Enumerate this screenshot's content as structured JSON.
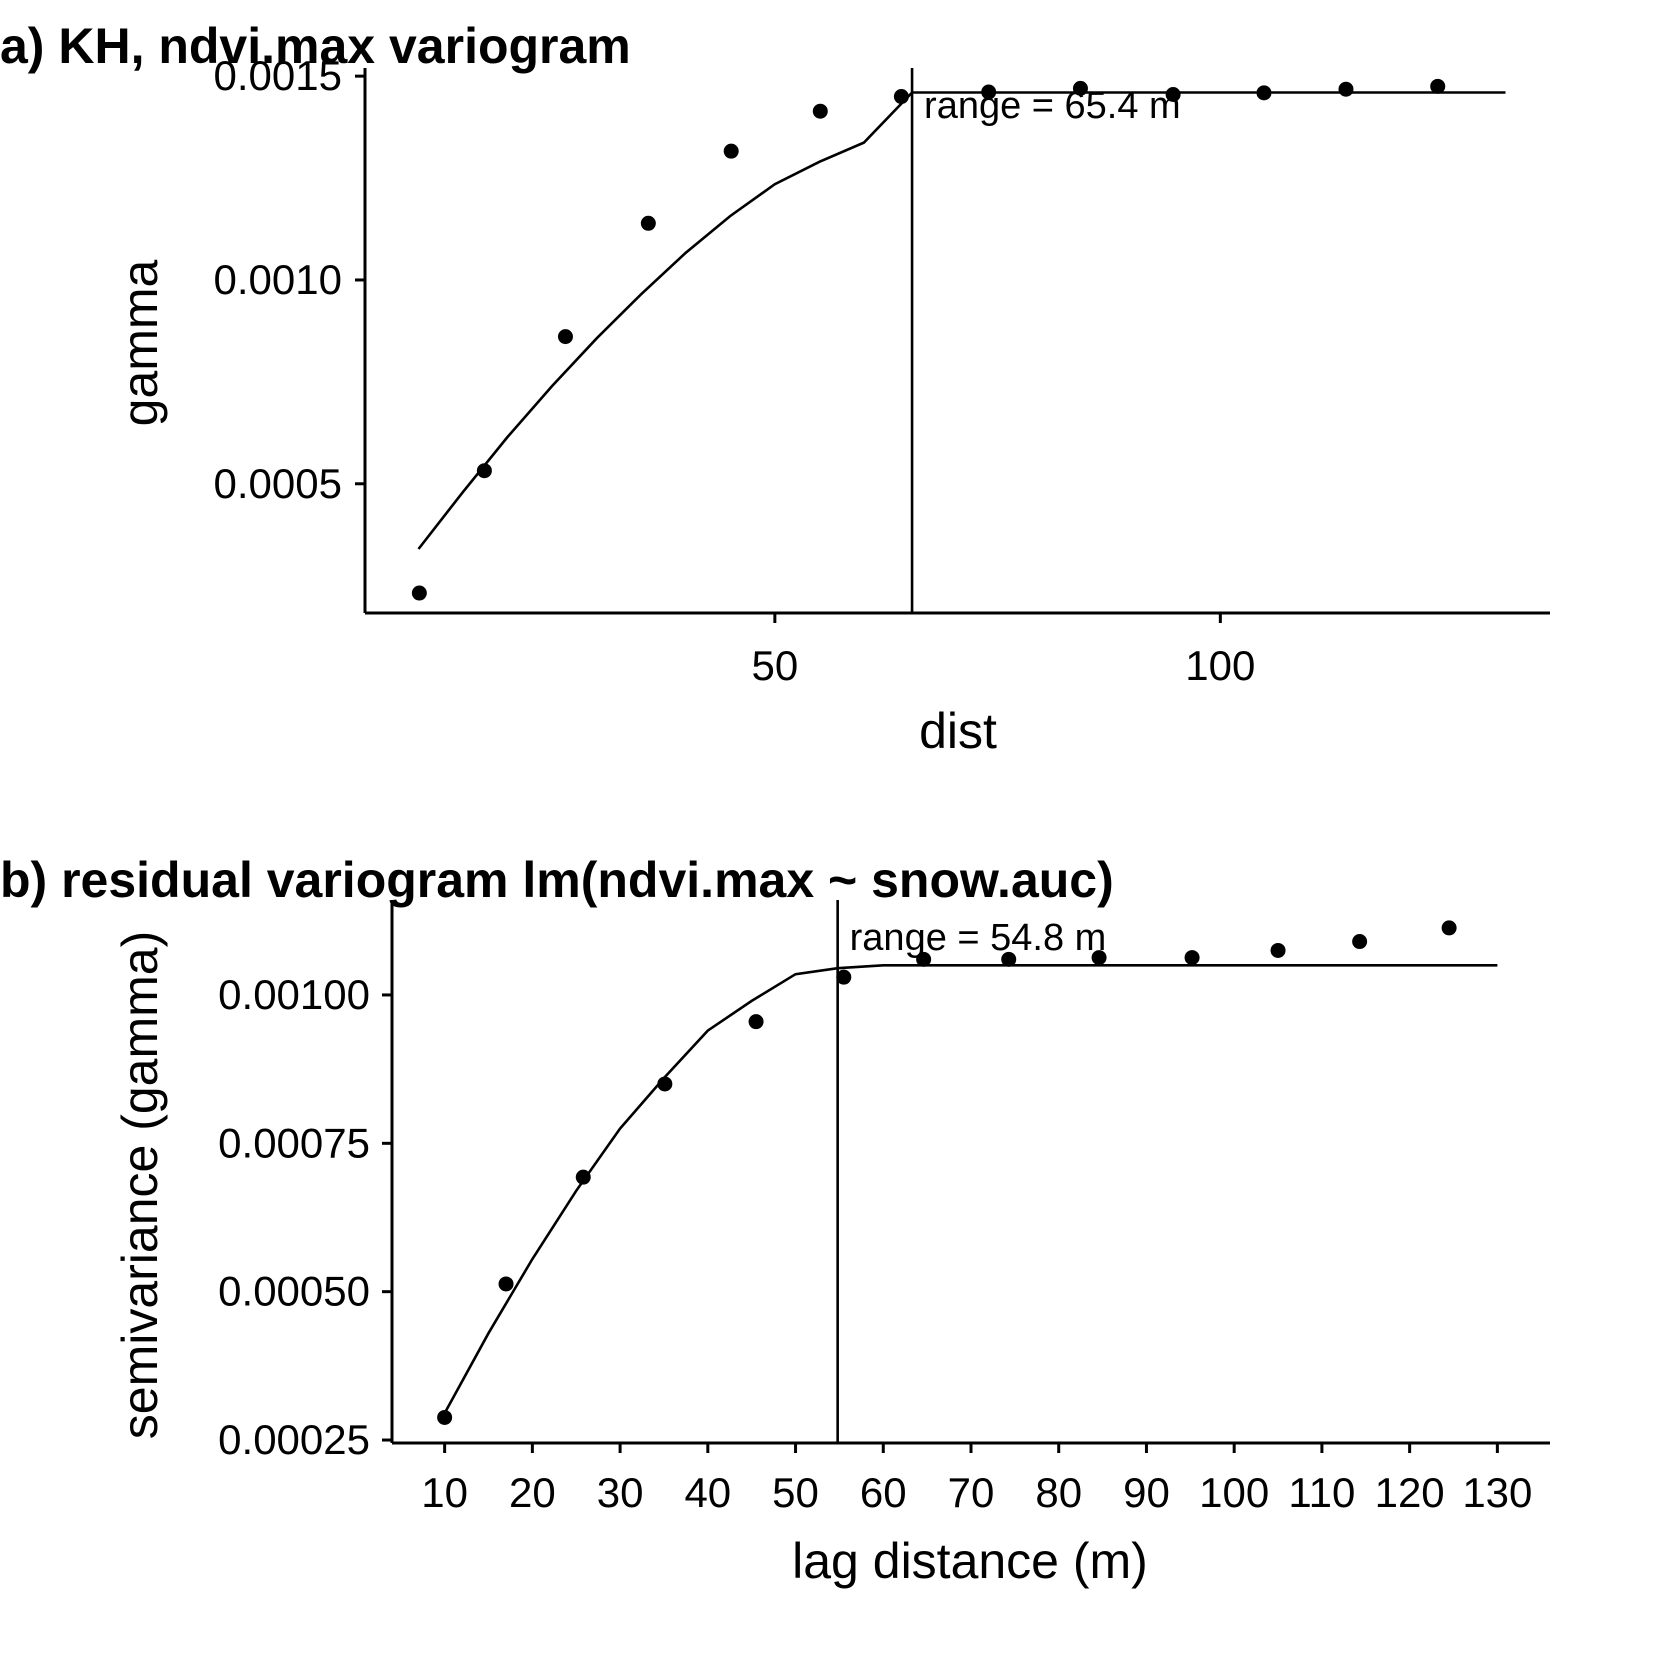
{
  "chart_data": [
    {
      "type": "scatter",
      "title": "a) KH, ndvi.max variogram",
      "xlabel": "dist",
      "ylabel": "gamma",
      "xlim": [
        4,
        137
      ],
      "ylim": [
        0.000183,
        0.00152
      ],
      "xticks": [
        50,
        100
      ],
      "xtick_labels": [
        "50",
        "100"
      ],
      "yticks": [
        0.0005,
        0.001,
        0.0015
      ],
      "ytick_labels": [
        "0.0005",
        "0.0010",
        "0.0015"
      ],
      "points": [
        {
          "x": 10.1,
          "y": 0.000232
        },
        {
          "x": 17.4,
          "y": 0.000532
        },
        {
          "x": 26.5,
          "y": 0.000861
        },
        {
          "x": 35.8,
          "y": 0.001139
        },
        {
          "x": 45.1,
          "y": 0.001316
        },
        {
          "x": 55.1,
          "y": 0.001414
        },
        {
          "x": 64.2,
          "y": 0.00145
        },
        {
          "x": 74.0,
          "y": 0.001461
        },
        {
          "x": 84.3,
          "y": 0.00147
        },
        {
          "x": 94.7,
          "y": 0.001455
        },
        {
          "x": 104.9,
          "y": 0.001459
        },
        {
          "x": 114.1,
          "y": 0.001468
        },
        {
          "x": 124.4,
          "y": 0.001475
        }
      ],
      "fit_line": {
        "x": [
          10,
          15,
          20,
          25,
          30,
          35,
          40,
          45,
          50,
          55,
          60,
          65.4,
          132
        ],
        "y": [
          0.00034,
          0.00048,
          0.000615,
          0.00074,
          0.000857,
          0.000965,
          0.001067,
          0.001157,
          0.001235,
          0.00129,
          0.001337,
          0.00146,
          0.00146
        ]
      },
      "range_line": {
        "x": 65.4,
        "label": "range = 65.4 m"
      },
      "grid": false
    },
    {
      "type": "scatter",
      "title": "b) residual variogram lm(ndvi.max ~ snow.auc)",
      "xlabel": "lag distance (m)",
      "ylabel": "semivariance (gamma)",
      "xlim": [
        4,
        136
      ],
      "ylim": [
        0.000245,
        0.00116
      ],
      "xticks": [
        10,
        20,
        30,
        40,
        50,
        60,
        70,
        80,
        90,
        100,
        110,
        120,
        130
      ],
      "xtick_labels": [
        "10",
        "20",
        "30",
        "40",
        "50",
        "60",
        "70",
        "80",
        "90",
        "100",
        "110",
        "120",
        "130"
      ],
      "yticks": [
        0.00025,
        0.0005,
        0.00075,
        0.001
      ],
      "ytick_labels": [
        "0.00025",
        "0.00050",
        "0.00075",
        "0.00100"
      ],
      "points": [
        {
          "x": 10.0,
          "y": 0.000288
        },
        {
          "x": 17.0,
          "y": 0.000513
        },
        {
          "x": 25.8,
          "y": 0.000693
        },
        {
          "x": 35.1,
          "y": 0.00085
        },
        {
          "x": 45.5,
          "y": 0.000955
        },
        {
          "x": 55.5,
          "y": 0.00103
        },
        {
          "x": 64.6,
          "y": 0.00106
        },
        {
          "x": 74.3,
          "y": 0.00106
        },
        {
          "x": 84.6,
          "y": 0.001063
        },
        {
          "x": 95.2,
          "y": 0.001063
        },
        {
          "x": 105.0,
          "y": 0.001075
        },
        {
          "x": 114.3,
          "y": 0.00109
        },
        {
          "x": 124.5,
          "y": 0.001113
        }
      ],
      "fit_line": {
        "x": [
          10,
          15,
          20,
          25,
          30,
          35,
          40,
          45,
          50,
          54.8,
          60,
          130
        ],
        "y": [
          0.000295,
          0.00043,
          0.000555,
          0.00067,
          0.000775,
          0.00086,
          0.00094,
          0.00099,
          0.001035,
          0.001045,
          0.00105,
          0.00105
        ]
      },
      "range_line": {
        "x": 54.8,
        "label": "range = 54.8 m"
      },
      "grid": false
    }
  ]
}
